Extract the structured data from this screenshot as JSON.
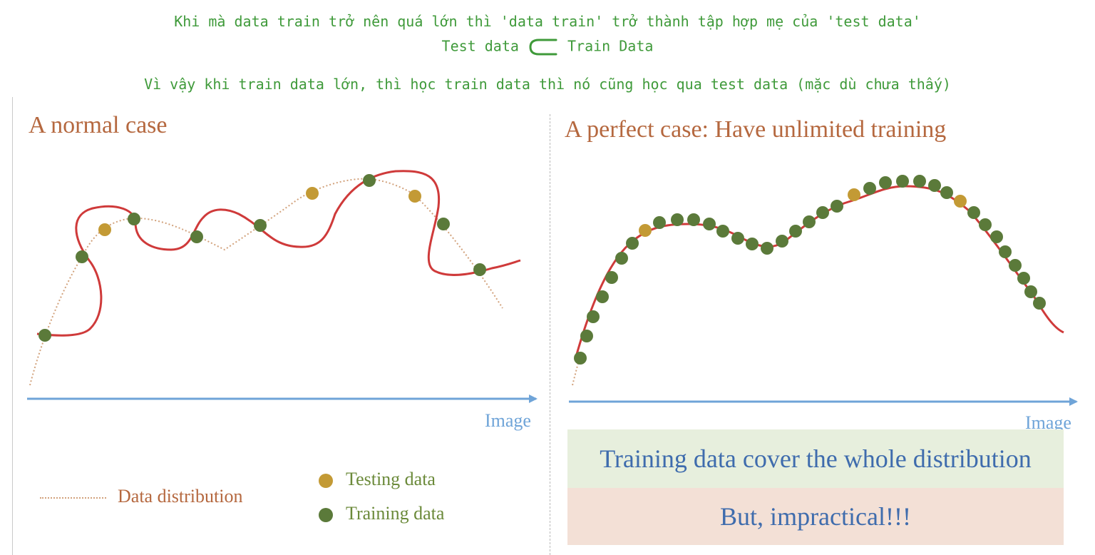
{
  "notes": {
    "line1": "Khi mà data train trở nên quá lớn thì 'data train' trở thành tập hợp mẹ của 'test data'",
    "line2_left": "Test data",
    "line2_right": "Train Data",
    "line3": "Vì vậy khi train data lớn, thì học train data thì nó cũng học qua test data (mặc dù chưa thấy)"
  },
  "left_panel": {
    "title": "A normal case",
    "axis_label": "Image",
    "legend": {
      "distribution": "Data distribution",
      "testing": "Testing data",
      "training": "Training data"
    }
  },
  "right_panel": {
    "title": "A perfect case: Have unlimited training",
    "axis_label": "Image",
    "box_top": "Training data cover the whole distribution",
    "box_bottom": "But, impractical!!!"
  },
  "colors": {
    "testing": "#c39a35",
    "training": "#5b7a3a",
    "fit_curve": "#cf3a3a",
    "distribution": "#d2a27c",
    "axis": "#6fa4d8",
    "annotation": "#3f9a3a",
    "title": "#b5683f"
  }
}
